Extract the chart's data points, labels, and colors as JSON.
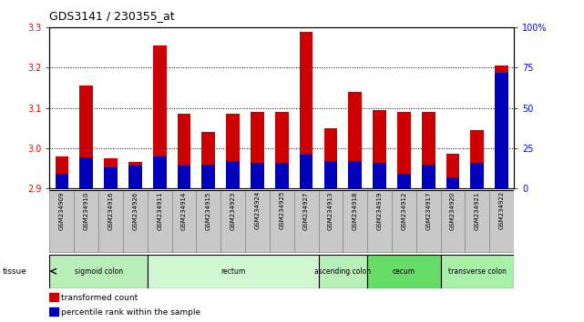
{
  "title": "GDS3141 / 230355_at",
  "samples": [
    "GSM234909",
    "GSM234910",
    "GSM234916",
    "GSM234926",
    "GSM234911",
    "GSM234914",
    "GSM234915",
    "GSM234923",
    "GSM234924",
    "GSM234925",
    "GSM234927",
    "GSM234913",
    "GSM234918",
    "GSM234919",
    "GSM234912",
    "GSM234917",
    "GSM234920",
    "GSM234921",
    "GSM234922"
  ],
  "transformed_count": [
    2.98,
    3.155,
    2.975,
    2.965,
    3.255,
    3.085,
    3.04,
    3.085,
    3.09,
    3.09,
    3.29,
    3.05,
    3.14,
    3.095,
    3.09,
    3.09,
    2.985,
    3.045,
    3.205
  ],
  "percentile_rank": [
    9,
    19,
    13,
    14,
    20,
    14,
    15,
    17,
    16,
    16,
    21,
    17,
    17,
    16,
    9,
    15,
    7,
    16,
    72
  ],
  "ylim_left": [
    2.9,
    3.3
  ],
  "ylim_right": [
    0,
    100
  ],
  "yticks_left": [
    2.9,
    3.0,
    3.1,
    3.2,
    3.3
  ],
  "yticks_right": [
    0,
    25,
    50,
    75,
    100
  ],
  "bar_bottom": 2.9,
  "tissues": [
    {
      "label": "sigmoid colon",
      "start": 0,
      "end": 4,
      "color": "#b8eeb8"
    },
    {
      "label": "rectum",
      "start": 4,
      "end": 11,
      "color": "#d0f8d0"
    },
    {
      "label": "ascending colon",
      "start": 11,
      "end": 13,
      "color": "#b8eeb8"
    },
    {
      "label": "cecum",
      "start": 13,
      "end": 16,
      "color": "#66dd66"
    },
    {
      "label": "transverse colon",
      "start": 16,
      "end": 19,
      "color": "#a8f0a8"
    }
  ],
  "bar_color_red": "#cc0000",
  "bar_color_blue": "#0000bb",
  "bar_width": 0.55,
  "bg_plot": "#ffffff",
  "bg_xtick": "#c8c8c8",
  "spine_color": "#000000",
  "grid_linestyle": "dotted",
  "grid_color": "#000000",
  "grid_linewidth": 0.7
}
